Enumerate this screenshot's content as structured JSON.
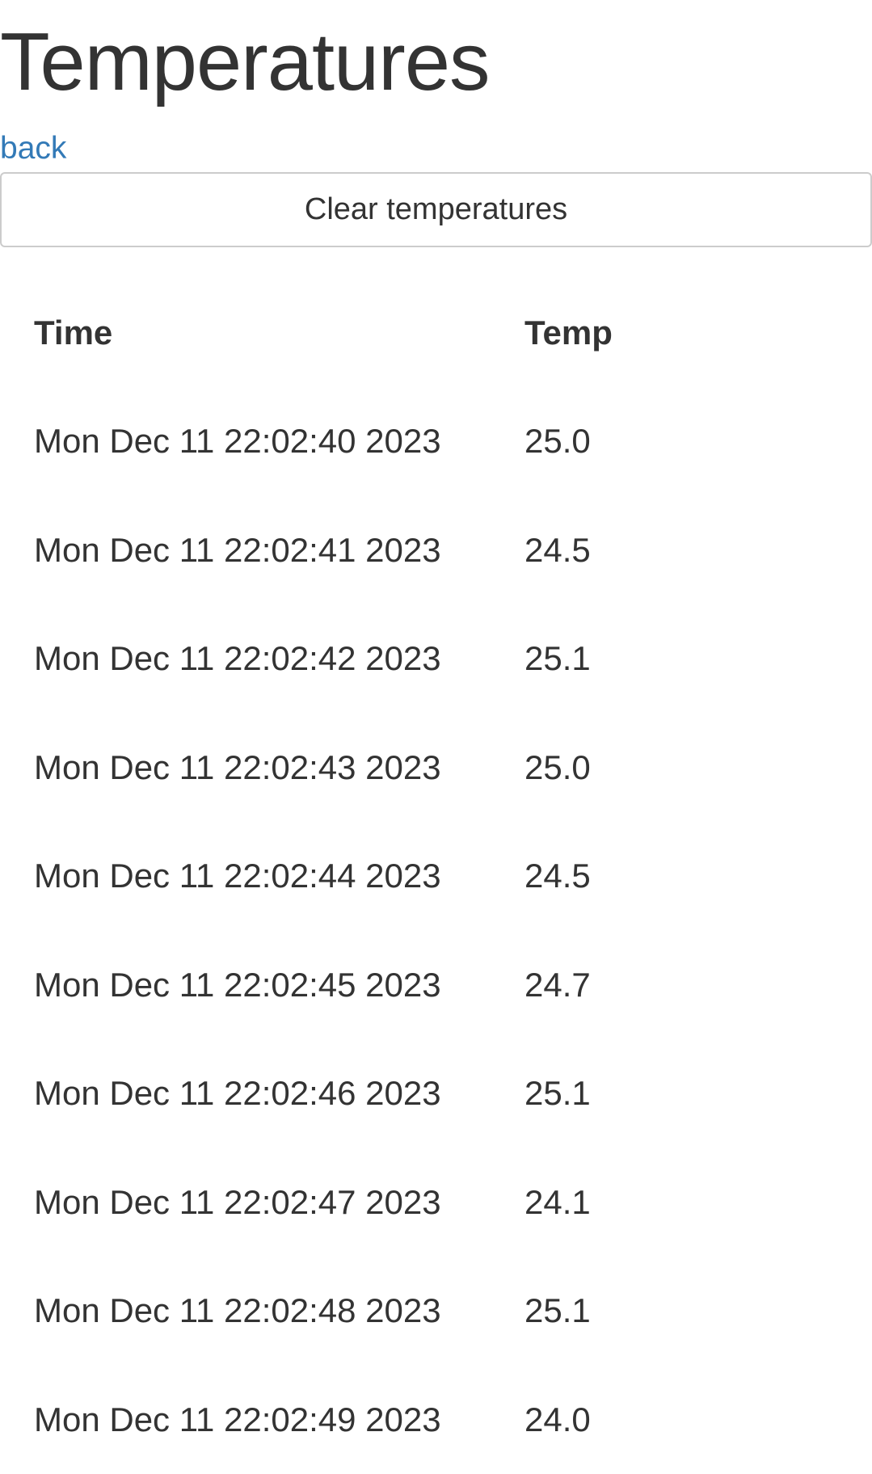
{
  "page": {
    "title": "Temperatures",
    "back_link": "back",
    "clear_button": "Clear temperatures"
  },
  "table": {
    "headers": {
      "time": "Time",
      "temp": "Temp"
    },
    "rows": [
      {
        "time": "Mon Dec 11 22:02:40 2023",
        "temp": "25.0"
      },
      {
        "time": "Mon Dec 11 22:02:41 2023",
        "temp": "24.5"
      },
      {
        "time": "Mon Dec 11 22:02:42 2023",
        "temp": "25.1"
      },
      {
        "time": "Mon Dec 11 22:02:43 2023",
        "temp": "25.0"
      },
      {
        "time": "Mon Dec 11 22:02:44 2023",
        "temp": "24.5"
      },
      {
        "time": "Mon Dec 11 22:02:45 2023",
        "temp": "24.7"
      },
      {
        "time": "Mon Dec 11 22:02:46 2023",
        "temp": "25.1"
      },
      {
        "time": "Mon Dec 11 22:02:47 2023",
        "temp": "24.1"
      },
      {
        "time": "Mon Dec 11 22:02:48 2023",
        "temp": "25.1"
      },
      {
        "time": "Mon Dec 11 22:02:49 2023",
        "temp": "24.0"
      }
    ]
  },
  "colors": {
    "link": "#337ab7",
    "text": "#333333",
    "button_border": "#cccccc"
  }
}
